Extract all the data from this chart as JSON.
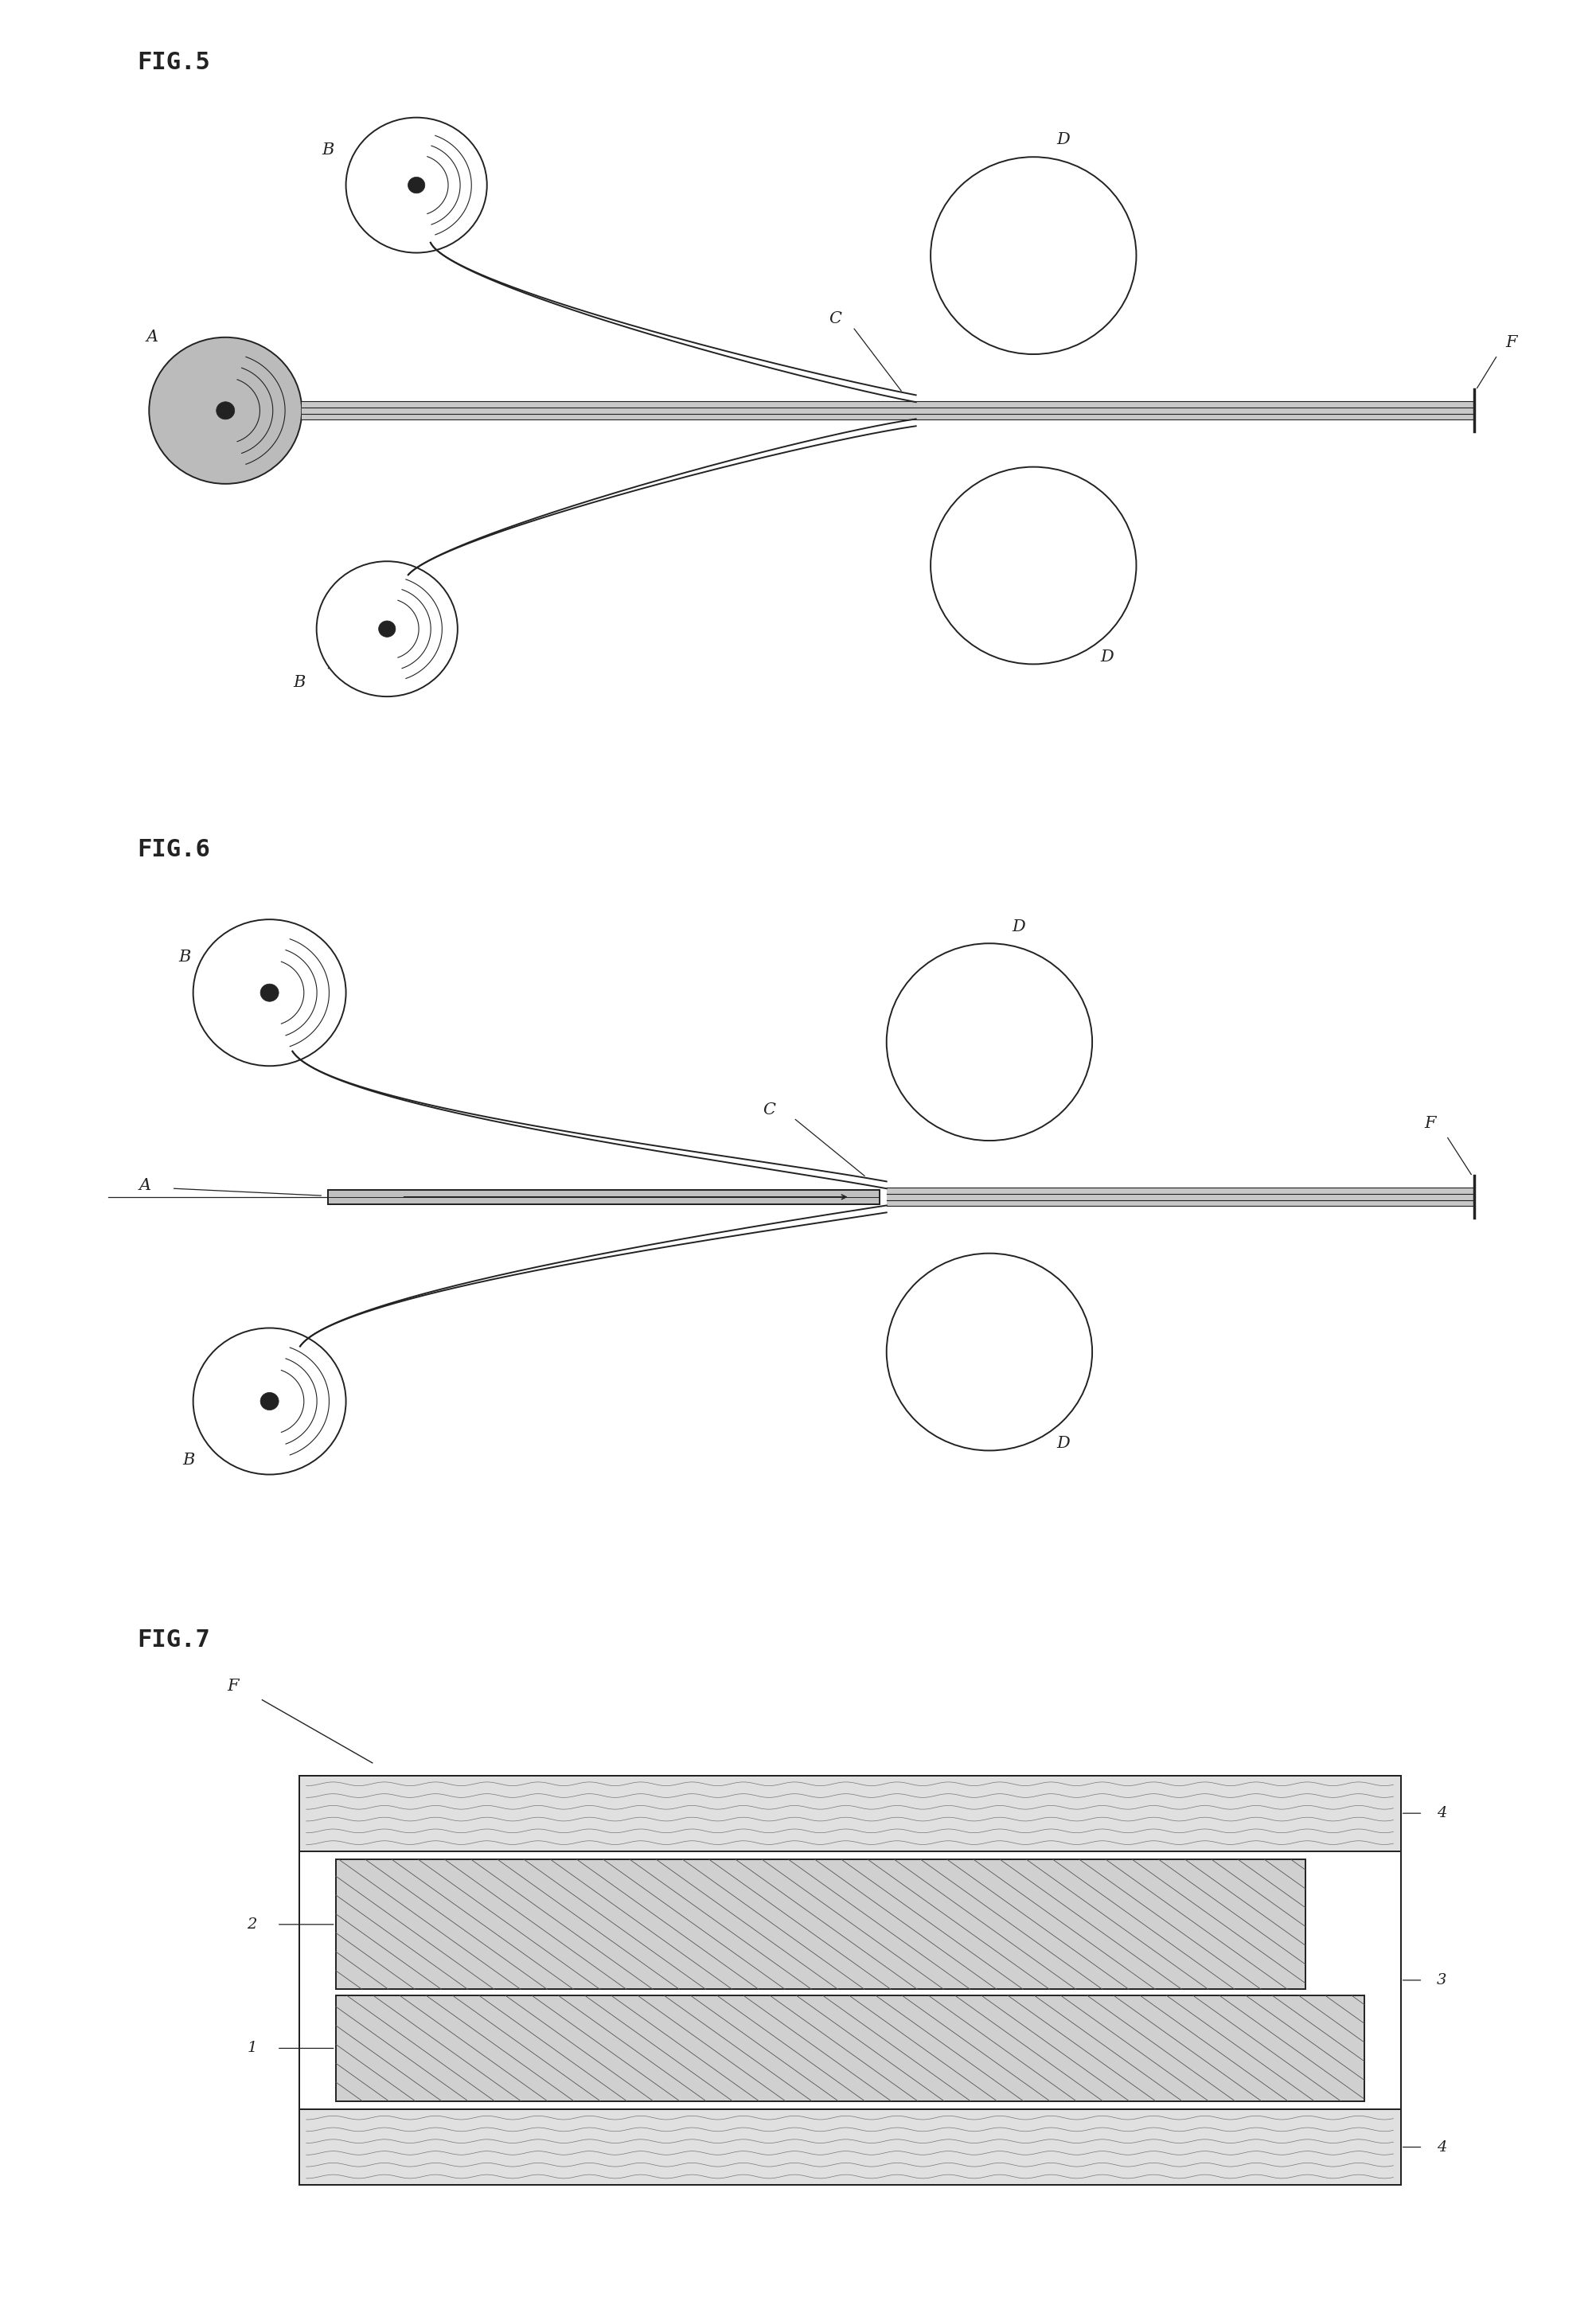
{
  "fig_title_5": "FIG.5",
  "fig_title_6": "FIG.6",
  "fig_title_7": "FIG.7",
  "bg_color": "#ffffff",
  "line_color": "#222222",
  "lw": 1.4
}
